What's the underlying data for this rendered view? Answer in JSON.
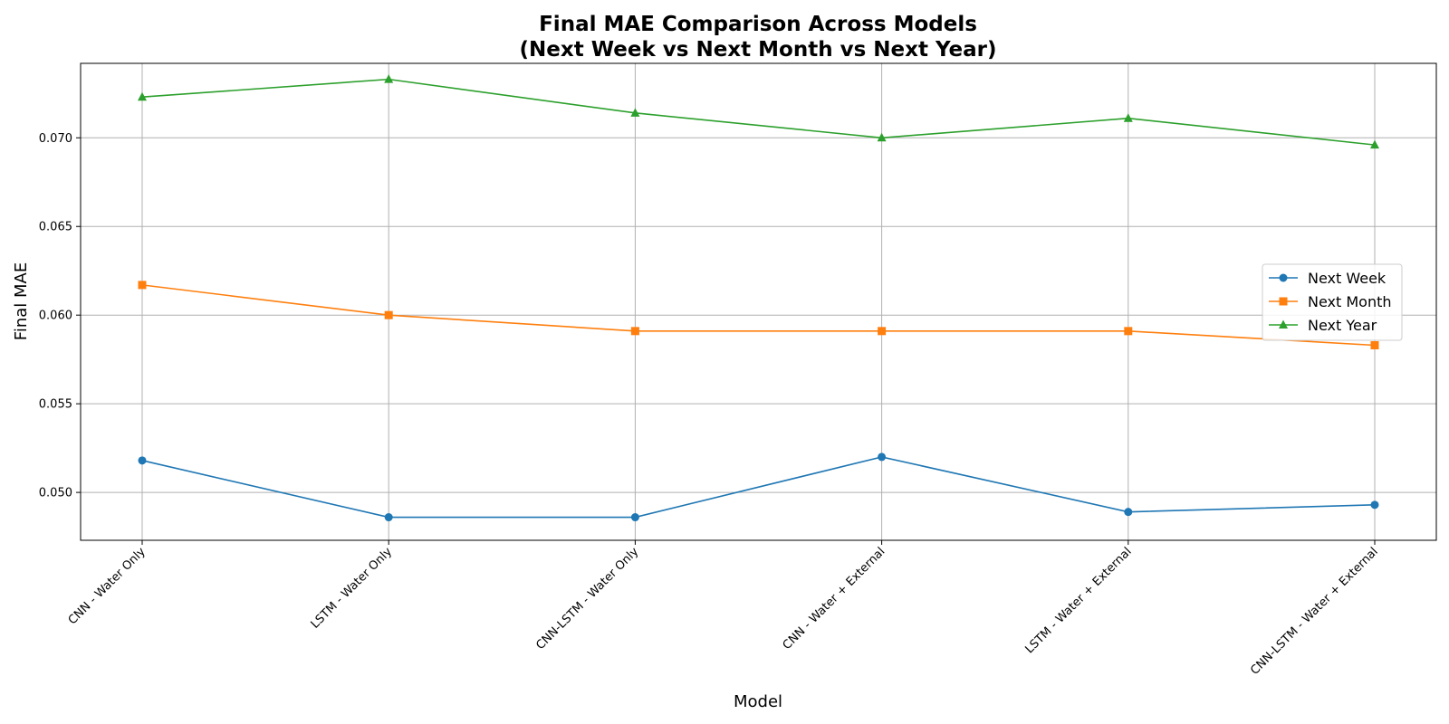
{
  "chart_data": {
    "type": "line",
    "title_lines": [
      "Final MAE Comparison Across Models",
      "(Next Week vs Next Month vs Next Year)"
    ],
    "xlabel": "Model",
    "ylabel": "Final MAE",
    "categories": [
      "CNN - Water Only",
      "LSTM - Water Only",
      "CNN-LSTM - Water Only",
      "CNN - Water + External",
      "LSTM - Water + External",
      "CNN-LSTM - Water + External"
    ],
    "ylim": [
      0.0473,
      0.0742
    ],
    "yticks": [
      0.05,
      0.055,
      0.06,
      0.065,
      0.07
    ],
    "ytick_labels": [
      "0.050",
      "0.055",
      "0.060",
      "0.065",
      "0.070"
    ],
    "grid": true,
    "legend_position": "center-right",
    "series": [
      {
        "name": "Next Week",
        "color": "#1f77b4",
        "marker": "circle",
        "values": [
          0.0518,
          0.0486,
          0.0486,
          0.052,
          0.0489,
          0.0493
        ]
      },
      {
        "name": "Next Month",
        "color": "#ff7f0e",
        "marker": "square",
        "values": [
          0.0617,
          0.06,
          0.0591,
          0.0591,
          0.0591,
          0.0583
        ]
      },
      {
        "name": "Next Year",
        "color": "#2ca02c",
        "marker": "triangle",
        "values": [
          0.0723,
          0.0733,
          0.0714,
          0.07,
          0.0711,
          0.0696
        ]
      }
    ]
  }
}
